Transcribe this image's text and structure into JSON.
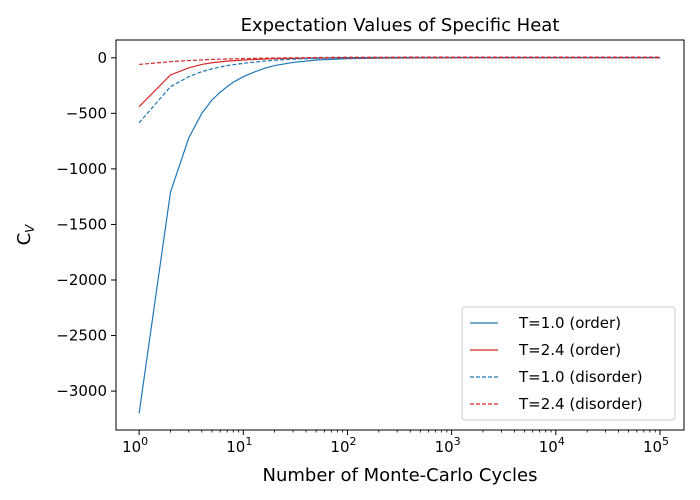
{
  "chart_data": {
    "type": "line",
    "title": "Expectation Values of Specific Heat",
    "xlabel": "Number of Monte-Carlo Cycles",
    "ylabel_main": "C",
    "ylabel_sub": "V",
    "xscale": "log",
    "xlim": [
      0.6,
      170000
    ],
    "ylim": [
      -3350,
      160
    ],
    "x_ticks": [
      {
        "value": 1,
        "base": "10",
        "exp": "0"
      },
      {
        "value": 10,
        "base": "10",
        "exp": "1"
      },
      {
        "value": 100,
        "base": "10",
        "exp": "2"
      },
      {
        "value": 1000,
        "base": "10",
        "exp": "3"
      },
      {
        "value": 10000,
        "base": "10",
        "exp": "4"
      },
      {
        "value": 100000,
        "base": "10",
        "exp": "5"
      }
    ],
    "y_ticks": [
      {
        "value": 0,
        "label": "0"
      },
      {
        "value": -500,
        "label": "−500"
      },
      {
        "value": -1000,
        "label": "−1000"
      },
      {
        "value": -1500,
        "label": "−1500"
      },
      {
        "value": -2000,
        "label": "−2000"
      },
      {
        "value": -2500,
        "label": "−2500"
      },
      {
        "value": -3000,
        "label": "−3000"
      }
    ],
    "legend_position": "bottom-right",
    "grid": false,
    "series": [
      {
        "name": "T=1.0 (order)",
        "color": "#1f77b4",
        "dash": "solid",
        "x": [
          1,
          2,
          3,
          4,
          5,
          6,
          7,
          8,
          10,
          13,
          16,
          20,
          30,
          50,
          100,
          200,
          1000,
          10000,
          100000
        ],
        "y": [
          -3200,
          -1210,
          -720,
          -500,
          -380,
          -310,
          -260,
          -220,
          -170,
          -125,
          -95,
          -70,
          -42,
          -20,
          -8,
          -3,
          0,
          0,
          0
        ]
      },
      {
        "name": "T=2.4 (order)",
        "color": "#d62728",
        "dash": "solid",
        "x": [
          1,
          2,
          3,
          4,
          5,
          7,
          10,
          15,
          20,
          50,
          100,
          1000,
          10000,
          100000
        ],
        "y": [
          -440,
          -155,
          -90,
          -60,
          -45,
          -30,
          -20,
          -12,
          -8,
          -3,
          -1,
          0,
          0,
          0
        ]
      },
      {
        "name": "T=1.0 (disorder)",
        "color": "#1f77b4",
        "dash": "dashed",
        "x": [
          1,
          2,
          3,
          4,
          5,
          7,
          10,
          15,
          20,
          30,
          50,
          100,
          1000,
          10000,
          100000
        ],
        "y": [
          -585,
          -260,
          -170,
          -125,
          -100,
          -70,
          -50,
          -32,
          -22,
          -12,
          -5,
          2,
          3,
          3,
          3
        ]
      },
      {
        "name": "T=2.4 (disorder)",
        "color": "#d62728",
        "dash": "dashed",
        "x": [
          1,
          2,
          3,
          5,
          10,
          20,
          50,
          100,
          1000,
          10000,
          100000
        ],
        "y": [
          -60,
          -35,
          -25,
          -15,
          -7,
          -2,
          2,
          5,
          6,
          6,
          6
        ]
      }
    ]
  }
}
